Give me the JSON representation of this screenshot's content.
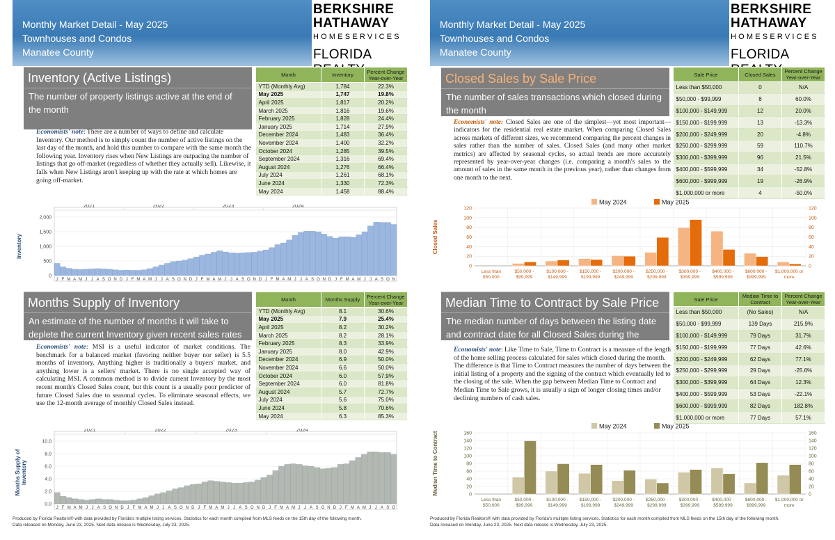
{
  "header": {
    "title_lines": [
      "Monthly Market Detail - May 2025",
      "Townhouses and Condos",
      "Manatee County"
    ],
    "logo": {
      "line1": "BERKSHIRE",
      "line2": "HATHAWAY",
      "line3": "HOMESERVICES",
      "line4": "FLORIDA REALTY"
    }
  },
  "inventory": {
    "title": "Inventory (Active Listings)",
    "description": "The number of property listings active at the end of the month",
    "note_label": "Economists' note",
    "note_text": ": There are a number of ways to define and calculate Inventory. Our method is to simply count the number of active listings on the last day of the month, and hold this number to compare with the same month the following year. Inventory rises when New Listings are outpacing the number of listings that go off-market (regardless of whether they actually sell). Likewise, it falls when New Listings aren't keeping up with the rate at which homes are going off-market.",
    "table": {
      "headers": [
        "Month",
        "Inventory",
        "Percent Change Year-over-Year"
      ],
      "rows": [
        [
          "YTD (Monthly Avg)",
          "1,784",
          "22.3%"
        ],
        [
          "May 2025",
          "1,747",
          "19.8%"
        ],
        [
          "April 2025",
          "1,817",
          "20.2%"
        ],
        [
          "March 2025",
          "1,816",
          "19.6%"
        ],
        [
          "February 2025",
          "1,828",
          "24.4%"
        ],
        [
          "January 2025",
          "1,714",
          "27.9%"
        ],
        [
          "December 2024",
          "1,483",
          "36.4%"
        ],
        [
          "November 2024",
          "1,400",
          "32.2%"
        ],
        [
          "October 2024",
          "1,285",
          "39.5%"
        ],
        [
          "September 2024",
          "1,316",
          "69.4%"
        ],
        [
          "August 2024",
          "1,276",
          "66.4%"
        ],
        [
          "July 2024",
          "1,261",
          "68.1%"
        ],
        [
          "June 2024",
          "1,330",
          "72.3%"
        ],
        [
          "May 2024",
          "1,458",
          "88.4%"
        ]
      ]
    }
  },
  "msi": {
    "title": "Months Supply of Inventory",
    "description": "An estimate of the number of months it will take to deplete the current Inventory given recent sales rates",
    "note_label": "Economists' note",
    "note_text": ": MSI is a useful indicator of market conditions. The benchmark for a balanced market (favoring neither buyer nor seller) is 5.5 months of inventory. Anything higher is traditionally a buyers' market, and anything lower is a sellers' market. There is no single accepted way of calculating MSI. A common method is to divide current Inventory by the most recent month's Closed Sales count, but this count is a usually poor predictor of future Closed Sales due to seasonal cycles. To eliminate seasonal effects, we use the 12-month average of monthly Closed Sales instead.",
    "table": {
      "headers": [
        "Month",
        "Months Supply",
        "Percent Change Year-over-Year"
      ],
      "rows": [
        [
          "YTD (Monthly Avg)",
          "8.1",
          "30.6%"
        ],
        [
          "May 2025",
          "7.9",
          "25.4%"
        ],
        [
          "April 2025",
          "8.2",
          "30.2%"
        ],
        [
          "March 2025",
          "8.2",
          "28.1%"
        ],
        [
          "February 2025",
          "8.3",
          "33.9%"
        ],
        [
          "January 2025",
          "8.0",
          "42.9%"
        ],
        [
          "December 2024",
          "6.9",
          "50.0%"
        ],
        [
          "November 2024",
          "6.6",
          "50.0%"
        ],
        [
          "October 2024",
          "6.0",
          "57.9%"
        ],
        [
          "September 2024",
          "6.0",
          "81.8%"
        ],
        [
          "August 2024",
          "5.7",
          "72.7%"
        ],
        [
          "July 2024",
          "5.6",
          "75.0%"
        ],
        [
          "June 2024",
          "5.8",
          "70.6%"
        ],
        [
          "May 2024",
          "6.3",
          "85.3%"
        ]
      ]
    }
  },
  "closed": {
    "title": "Closed Sales by Sale Price",
    "description": "The number of sales transactions which closed during the month",
    "note_label": "Economists' note:",
    "note_text": " Closed Sales are one of the simplest—yet most important—indicators for the residential real estate market. When comparing Closed Sales across markets of different sizes, we recommend comparing the percent changes in sales rather than the number of sales. Closed Sales (and many other market metrics) are affected by seasonal cycles, so actual trends are more accurately represented by year-over-year changes (i.e. comparing a month's sales to the amount of sales in the same month in the previous year), rather than changes from one month to the next.",
    "table": {
      "headers": [
        "Sale Price",
        "Closed Sales",
        "Percent Change Year-over-Year"
      ],
      "rows": [
        [
          "Less than $50,000",
          "0",
          "N/A"
        ],
        [
          "$50,000 - $99,999",
          "8",
          "60.0%"
        ],
        [
          "$100,000 - $149,999",
          "12",
          "20.0%"
        ],
        [
          "$150,000 - $199,999",
          "13",
          "-13.3%"
        ],
        [
          "$200,000 - $249,999",
          "20",
          "-4.8%"
        ],
        [
          "$250,000 - $299,999",
          "59",
          "110.7%"
        ],
        [
          "$300,000 - $399,999",
          "96",
          "21.5%"
        ],
        [
          "$400,000 - $599,999",
          "34",
          "-52.8%"
        ],
        [
          "$600,000 - $999,999",
          "19",
          "-26.9%"
        ],
        [
          "$1,000,000 or more",
          "4",
          "-50.0%"
        ]
      ]
    }
  },
  "ttc": {
    "title": "Median Time to Contract by Sale Price",
    "description": "The median number of days between the listing date and contract date for all Closed Sales during the month",
    "note_label": "Economists' note",
    "note_text": ": Like Time to Sale, Time to Contract is a measure of the length of the home selling process calculated for sales which closed during the month. The difference is that Time to Contract measures the number of days between the initial listing of a property and the signing of the contract which eventually led to the closing of the sale. When the gap between Median Time to Contract and Median Time to Sale grows, it is usually a sign of longer closing times and/or declining numbers of cash sales.",
    "table": {
      "headers": [
        "Sale Price",
        "Median Time to Contract",
        "Percent Change Year-over-Year"
      ],
      "rows": [
        [
          "Less than $50,000",
          "(No Sales)",
          "N/A"
        ],
        [
          "$50,000 - $99,999",
          "139 Days",
          "215.9%"
        ],
        [
          "$100,000 - $149,999",
          "79 Days",
          "31.7%"
        ],
        [
          "$150,000 - $199,999",
          "77 Days",
          "42.6%"
        ],
        [
          "$200,000 - $249,999",
          "62 Days",
          "77.1%"
        ],
        [
          "$250,000 - $299,999",
          "29 Days",
          "-25.6%"
        ],
        [
          "$300,000 - $399,999",
          "64 Days",
          "12.3%"
        ],
        [
          "$400,000 - $599,999",
          "53 Days",
          "-22.1%"
        ],
        [
          "$600,000 - $999,999",
          "82 Days",
          "182.8%"
        ],
        [
          "$1,000,000 or more",
          "77 Days",
          "57.1%"
        ]
      ]
    }
  },
  "footer": {
    "line1": "Produced by Florida Realtors® with data provided by Florida's multiple listing services. Statistics for each month compiled from MLS feeds on the 15th day of the following month.",
    "line2": "Data released on Monday, June 23, 2025. Next data release is Wednesday, July 23, 2025."
  },
  "chart_data": [
    {
      "type": "bar",
      "ylabel": "Inventory",
      "ylim": [
        0,
        2000
      ],
      "yticks": [
        "0",
        "500",
        "1,000",
        "1,500",
        "2,000"
      ],
      "years": [
        "2021",
        "2022",
        "2023",
        "2024"
      ],
      "month_letters": [
        "J",
        "F",
        "M",
        "A",
        "M",
        "J",
        "J",
        "A",
        "S",
        "O",
        "N",
        "D"
      ],
      "color": "#9bb7df",
      "values": [
        420,
        300,
        250,
        220,
        210,
        220,
        230,
        240,
        230,
        220,
        200,
        180,
        190,
        180,
        180,
        200,
        240,
        300,
        360,
        420,
        480,
        500,
        530,
        580,
        640,
        700,
        740,
        800,
        850,
        810,
        780,
        770,
        780,
        790,
        800,
        840,
        880,
        960,
        1060,
        1120,
        1220,
        1380,
        1480,
        1520,
        1520,
        1500,
        1420,
        1340,
        1280,
        1330,
        1330,
        1310,
        1400,
        1500,
        1700,
        1830,
        1820,
        1820,
        1750
      ]
    },
    {
      "type": "bar",
      "ylabel": "Months Supply of Inventory",
      "ylim": [
        0,
        10
      ],
      "yticks": [
        "0.0",
        "2.0",
        "4.0",
        "6.0",
        "8.0",
        "10.0"
      ],
      "years": [
        "2021",
        "2022",
        "2023",
        "2024"
      ],
      "month_letters": [
        "J",
        "F",
        "M",
        "A",
        "M",
        "J",
        "J",
        "A",
        "S",
        "O",
        "N",
        "D"
      ],
      "color": "#b3b8b0",
      "values": [
        1.8,
        1.2,
        1.0,
        0.8,
        0.7,
        0.6,
        0.7,
        0.8,
        0.7,
        0.7,
        0.6,
        0.5,
        0.5,
        0.6,
        0.8,
        1.0,
        1.3,
        1.6,
        1.8,
        2.1,
        2.4,
        2.6,
        2.9,
        3.1,
        3.2,
        3.5,
        3.7,
        3.6,
        3.5,
        3.4,
        3.3,
        3.3,
        3.4,
        3.5,
        3.8,
        4.2,
        4.6,
        5.3,
        6.0,
        6.3,
        6.4,
        6.3,
        6.1,
        6.0,
        5.8,
        5.6,
        5.7,
        5.8,
        6.3,
        6.4,
        6.9,
        7.4,
        7.9,
        8.3,
        8.3,
        8.2,
        8.2,
        7.9
      ]
    },
    {
      "type": "bar",
      "ylabel": "Closed Sales",
      "ylim": [
        0,
        120
      ],
      "yticks": [
        "0",
        "20",
        "40",
        "60",
        "80",
        "100",
        "120"
      ],
      "categories": [
        "Less than $50,000",
        "$50,000 - $99,999",
        "$100,000 - $149,999",
        "$150,000 - $199,999",
        "$200,000 - $249,999",
        "$250,000 - $299,999",
        "$300,000 - $399,999",
        "$400,000 - $599,999",
        "$600,000 - $999,999",
        "$1,000,000 or more"
      ],
      "series": [
        {
          "name": "May 2024",
          "values": [
            0,
            5,
            10,
            15,
            21,
            28,
            79,
            72,
            26,
            8
          ],
          "color": "#f6b482"
        },
        {
          "name": "May 2025",
          "values": [
            0,
            8,
            12,
            13,
            20,
            59,
            96,
            34,
            19,
            4
          ],
          "color": "#e46c0a"
        }
      ],
      "legend": "top"
    },
    {
      "type": "bar",
      "ylabel": "Median Time to Contract",
      "ylim": [
        0,
        160
      ],
      "yticks": [
        "0",
        "20",
        "40",
        "60",
        "80",
        "100",
        "120",
        "140",
        "160"
      ],
      "categories": [
        "Less than $50,000",
        "$50,000 - $99,999",
        "$100,000 - $149,999",
        "$150,000 - $199,999",
        "$200,000 - $249,999",
        "$250,000 - $299,999",
        "$300,000 - $399,999",
        "$400,000 - $599,999",
        "$600,000 - $999,999",
        "$1,000,000 or more"
      ],
      "series": [
        {
          "name": "May 2024",
          "values": [
            0,
            44,
            60,
            54,
            35,
            39,
            57,
            68,
            29,
            49
          ],
          "color": "#cfc7a5"
        },
        {
          "name": "May 2025",
          "values": [
            0,
            139,
            79,
            77,
            62,
            29,
            64,
            53,
            82,
            77
          ],
          "color": "#958b55"
        }
      ],
      "legend": "top"
    }
  ]
}
